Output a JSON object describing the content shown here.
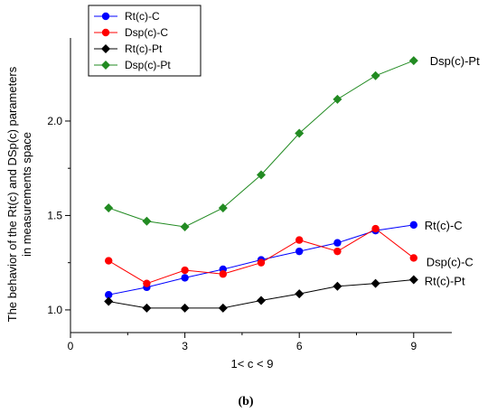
{
  "chart_data": {
    "type": "line",
    "x": [
      1,
      2,
      3,
      4,
      5,
      6,
      7,
      8,
      9
    ],
    "xlabel": "1< c < 9",
    "ylabel_lines": [
      "The behavior of the Rt(c) and DSp(c) parameters",
      "in measurements space"
    ],
    "xlim": [
      0,
      10
    ],
    "ylim": [
      0.88,
      2.44
    ],
    "xticks": [
      "0",
      "3",
      "6",
      "9"
    ],
    "xtick_values": [
      0,
      3,
      6,
      9
    ],
    "yticks": [
      "1.0",
      "1.5",
      "2.0"
    ],
    "ytick_values": [
      1.0,
      1.5,
      2.0
    ],
    "grid": false,
    "legend_position": "top-left",
    "caption": "(b)",
    "series": [
      {
        "name": "Rt(c)-C",
        "end_label": "Rt(c)-C",
        "color": "#0000ff",
        "marker": "circle",
        "values": [
          1.08,
          1.12,
          1.17,
          1.215,
          1.265,
          1.31,
          1.355,
          1.42,
          1.45
        ]
      },
      {
        "name": "Dsp(c)-C",
        "end_label": "Dsp(c)-C",
        "color": "#ff0000",
        "marker": "circle",
        "values": [
          1.26,
          1.14,
          1.21,
          1.19,
          1.25,
          1.37,
          1.31,
          1.43,
          1.275
        ]
      },
      {
        "name": "Rt(c)-Pt",
        "end_label": "Rt(c)-Pt",
        "color": "#000000",
        "marker": "diamond",
        "values": [
          1.045,
          1.01,
          1.01,
          1.01,
          1.05,
          1.085,
          1.125,
          1.14,
          1.16
        ]
      },
      {
        "name": "Dsp(c)-Pt",
        "end_label": "Dsp(c)-Pt",
        "color": "#228b22",
        "marker": "diamond",
        "values": [
          1.54,
          1.47,
          1.44,
          1.54,
          1.715,
          1.935,
          2.115,
          2.24,
          2.32
        ]
      }
    ]
  }
}
